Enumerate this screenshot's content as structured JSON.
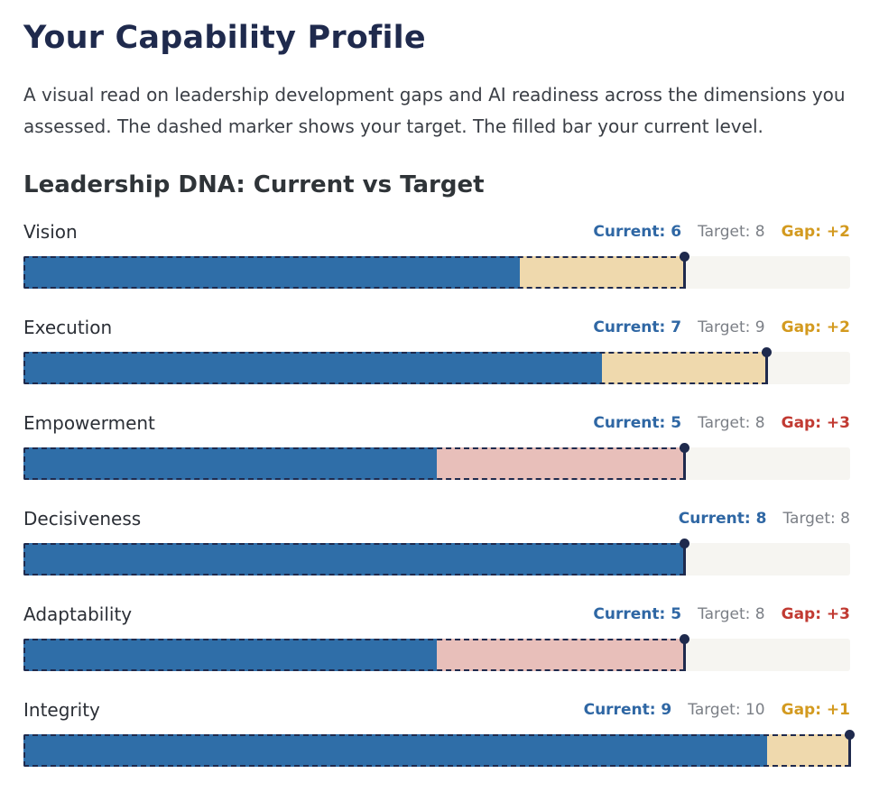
{
  "page": {
    "title": "Your Capability Profile",
    "description": "A visual read on leadership development gaps and AI readiness across the dimensions you assessed. The dashed marker shows your target. The filled bar your current level."
  },
  "section": {
    "title": "Leadership DNA: Current vs Target"
  },
  "colors": {
    "current": "#2f6ea8",
    "gap_small": "#efd9ad",
    "gap_large": "#e8bfba",
    "gap_small_text": "#d39a1f",
    "gap_large_text": "#c13a32",
    "target_marker": "#1f2a4d",
    "track": "#f6f5f1"
  },
  "chart_data": {
    "type": "bar",
    "orientation": "horizontal",
    "title": "Leadership DNA: Current vs Target",
    "xlim": [
      0,
      10
    ],
    "categories": [
      "Vision",
      "Execution",
      "Empowerment",
      "Decisiveness",
      "Adaptability",
      "Integrity"
    ],
    "series": [
      {
        "name": "Current",
        "values": [
          6,
          7,
          5,
          8,
          5,
          9
        ]
      },
      {
        "name": "Target",
        "values": [
          8,
          9,
          8,
          8,
          8,
          10
        ]
      }
    ],
    "labels": [
      {
        "current": "Current: 6",
        "target": "Target: 8",
        "gap": "Gap: +2"
      },
      {
        "current": "Current: 7",
        "target": "Target: 9",
        "gap": "Gap: +2"
      },
      {
        "current": "Current: 5",
        "target": "Target: 8",
        "gap": "Gap: +3"
      },
      {
        "current": "Current: 8",
        "target": "Target: 8",
        "gap": ""
      },
      {
        "current": "Current: 5",
        "target": "Target: 8",
        "gap": "Gap: +3"
      },
      {
        "current": "Current: 9",
        "target": "Target: 10",
        "gap": "Gap: +1"
      }
    ]
  }
}
